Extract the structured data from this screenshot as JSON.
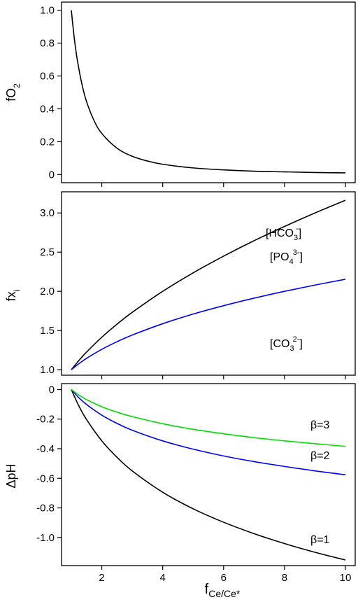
{
  "chart_data": [
    {
      "type": "line",
      "xlim": [
        1,
        10
      ],
      "ylim": [
        -0.05,
        1.05
      ],
      "x_ticks": [
        "2",
        "4",
        "6",
        "8",
        "10"
      ],
      "y_ticks": [
        0,
        0.2,
        0.4,
        0.6,
        0.8,
        1.0
      ],
      "y_tick_labels": [
        "0",
        "0.2",
        "0.4",
        "0.6",
        "0.8",
        "1.0"
      ],
      "ylabel": {
        "main": "fO",
        "sub": "2"
      },
      "series": [
        {
          "color": "#000000",
          "x": [
            1,
            1.1,
            1.2,
            1.35,
            1.5,
            1.75,
            2,
            2.5,
            3,
            3.5,
            4,
            5,
            6,
            7,
            8,
            9,
            10
          ],
          "y": [
            1.0,
            0.826,
            0.694,
            0.549,
            0.444,
            0.327,
            0.25,
            0.16,
            0.111,
            0.082,
            0.0625,
            0.04,
            0.028,
            0.02,
            0.016,
            0.012,
            0.01
          ]
        }
      ]
    },
    {
      "type": "line",
      "xlim": [
        1,
        10
      ],
      "ylim": [
        0.93,
        3.27
      ],
      "x_ticks": [
        "2",
        "4",
        "6",
        "8",
        "10"
      ],
      "y_ticks": [
        1.0,
        1.5,
        2.0,
        2.5,
        3.0
      ],
      "y_tick_labels": [
        "1.0",
        "1.5",
        "2.0",
        "2.5",
        "3.0"
      ],
      "ylabel": {
        "main": "fx",
        "sub": "i"
      },
      "series": [
        {
          "color": "#000000",
          "x": [
            1,
            1.25,
            1.5,
            2,
            2.5,
            3,
            4,
            5,
            6,
            7,
            8,
            9,
            10
          ],
          "y": [
            1.0,
            1.118,
            1.225,
            1.414,
            1.581,
            1.732,
            2.0,
            2.236,
            2.449,
            2.646,
            2.828,
            3.0,
            3.162
          ]
        },
        {
          "color": "#0000ff",
          "x": [
            1,
            1.25,
            1.5,
            2,
            2.5,
            3,
            4,
            5,
            6,
            7,
            8,
            9,
            10
          ],
          "y": [
            1.0,
            1.077,
            1.145,
            1.26,
            1.357,
            1.442,
            1.587,
            1.71,
            1.817,
            1.913,
            2.0,
            2.08,
            2.154
          ]
        }
      ]
    },
    {
      "type": "line",
      "xlim": [
        1,
        10
      ],
      "ylim": [
        -1.19,
        0.04
      ],
      "x_ticks": [
        "2",
        "4",
        "6",
        "8",
        "10"
      ],
      "x_tick_values": [
        2,
        4,
        6,
        8,
        10
      ],
      "y_ticks": [
        0,
        -0.2,
        -0.4,
        -0.6,
        -0.8,
        -1.0
      ],
      "y_tick_labels": [
        "0",
        "-0.2",
        "-0.4",
        "-0.6",
        "-0.8",
        "-1.0"
      ],
      "ylabel": {
        "main": "ΔpH",
        "sub": ""
      },
      "xlabel": {
        "main": "f",
        "sub": "Ce/Ce*"
      },
      "series": [
        {
          "color": "#000000",
          "x": [
            1,
            1.25,
            1.5,
            2,
            2.5,
            3,
            4,
            5,
            6,
            7,
            8,
            9,
            10
          ],
          "y": [
            0,
            -0.112,
            -0.203,
            -0.347,
            -0.458,
            -0.55,
            -0.694,
            -0.806,
            -0.897,
            -0.974,
            -1.041,
            -1.1,
            -1.152
          ]
        },
        {
          "color": "#0000ff",
          "x": [
            1,
            1.25,
            1.5,
            2,
            2.5,
            3,
            4,
            5,
            6,
            7,
            8,
            9,
            10
          ],
          "y": [
            0,
            -0.056,
            -0.101,
            -0.173,
            -0.229,
            -0.275,
            -0.347,
            -0.403,
            -0.449,
            -0.487,
            -0.52,
            -0.55,
            -0.576
          ]
        },
        {
          "color": "#00dd00",
          "x": [
            1,
            1.25,
            1.5,
            2,
            2.5,
            3,
            4,
            5,
            6,
            7,
            8,
            9,
            10
          ],
          "y": [
            0,
            -0.037,
            -0.068,
            -0.116,
            -0.153,
            -0.183,
            -0.231,
            -0.269,
            -0.299,
            -0.325,
            -0.347,
            -0.366,
            -0.384
          ]
        }
      ]
    }
  ],
  "annotations": {
    "hco3": {
      "base": "[HCO",
      "sub": "3",
      "sup": "-",
      "end": "]"
    },
    "po4": {
      "base": "[PO",
      "sub": "4",
      "sup": "3-",
      "end": "]"
    },
    "co3": {
      "base": "[CO",
      "sub": "3",
      "sup": "2-",
      "end": "]"
    },
    "beta1": "β=1",
    "beta2": "β=2",
    "beta3": "β=3"
  }
}
